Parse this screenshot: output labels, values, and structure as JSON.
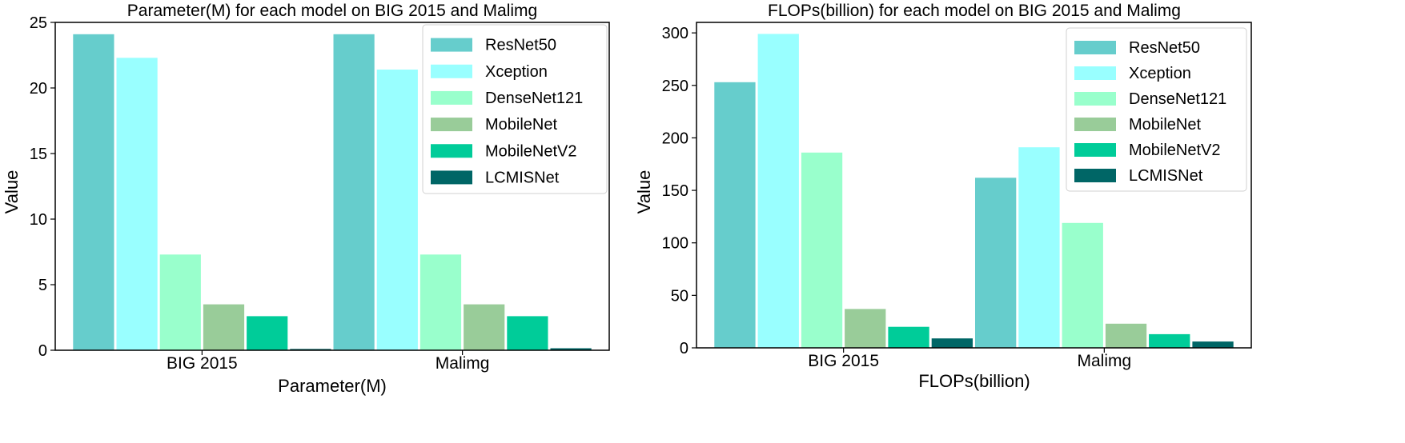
{
  "chart_data": [
    {
      "type": "bar",
      "title": "Parameter(M) for each model on BIG 2015 and Malimg",
      "xlabel": "Parameter(M)",
      "ylabel": "Value",
      "ylim": [
        0,
        25
      ],
      "yticks": [
        0,
        5,
        10,
        15,
        20,
        25
      ],
      "grid": false,
      "legend_position": "top-right",
      "categories": [
        "BIG 2015",
        "Malimg"
      ],
      "series": [
        {
          "name": "ResNet50",
          "color": "#66CDCC",
          "values": [
            24.1,
            24.1
          ]
        },
        {
          "name": "Xception",
          "color": "#99FFFF",
          "values": [
            22.3,
            21.4
          ]
        },
        {
          "name": "DenseNet121",
          "color": "#99FFCC",
          "values": [
            7.3,
            7.3
          ]
        },
        {
          "name": "MobileNet",
          "color": "#99CC99",
          "values": [
            3.5,
            3.5
          ]
        },
        {
          "name": "MobileNetV2",
          "color": "#00CC99",
          "values": [
            2.6,
            2.6
          ]
        },
        {
          "name": "LCMISNet",
          "color": "#006666",
          "values": [
            0.1,
            0.15
          ]
        }
      ]
    },
    {
      "type": "bar",
      "title": "FLOPs(billion) for each model on BIG 2015 and Malimg",
      "xlabel": "FLOPs(billion)",
      "ylabel": "Value",
      "ylim": [
        0,
        310
      ],
      "yticks": [
        0,
        50,
        100,
        150,
        200,
        250,
        300
      ],
      "grid": false,
      "legend_position": "top-right",
      "categories": [
        "BIG 2015",
        "Malimg"
      ],
      "series": [
        {
          "name": "ResNet50",
          "color": "#66CDCC",
          "values": [
            253,
            162
          ]
        },
        {
          "name": "Xception",
          "color": "#99FFFF",
          "values": [
            299,
            191
          ]
        },
        {
          "name": "DenseNet121",
          "color": "#99FFCC",
          "values": [
            186,
            119
          ]
        },
        {
          "name": "MobileNet",
          "color": "#99CC99",
          "values": [
            37,
            23
          ]
        },
        {
          "name": "MobileNetV2",
          "color": "#00CC99",
          "values": [
            20,
            13
          ]
        },
        {
          "name": "LCMISNet",
          "color": "#006666",
          "values": [
            9,
            6
          ]
        }
      ]
    }
  ]
}
